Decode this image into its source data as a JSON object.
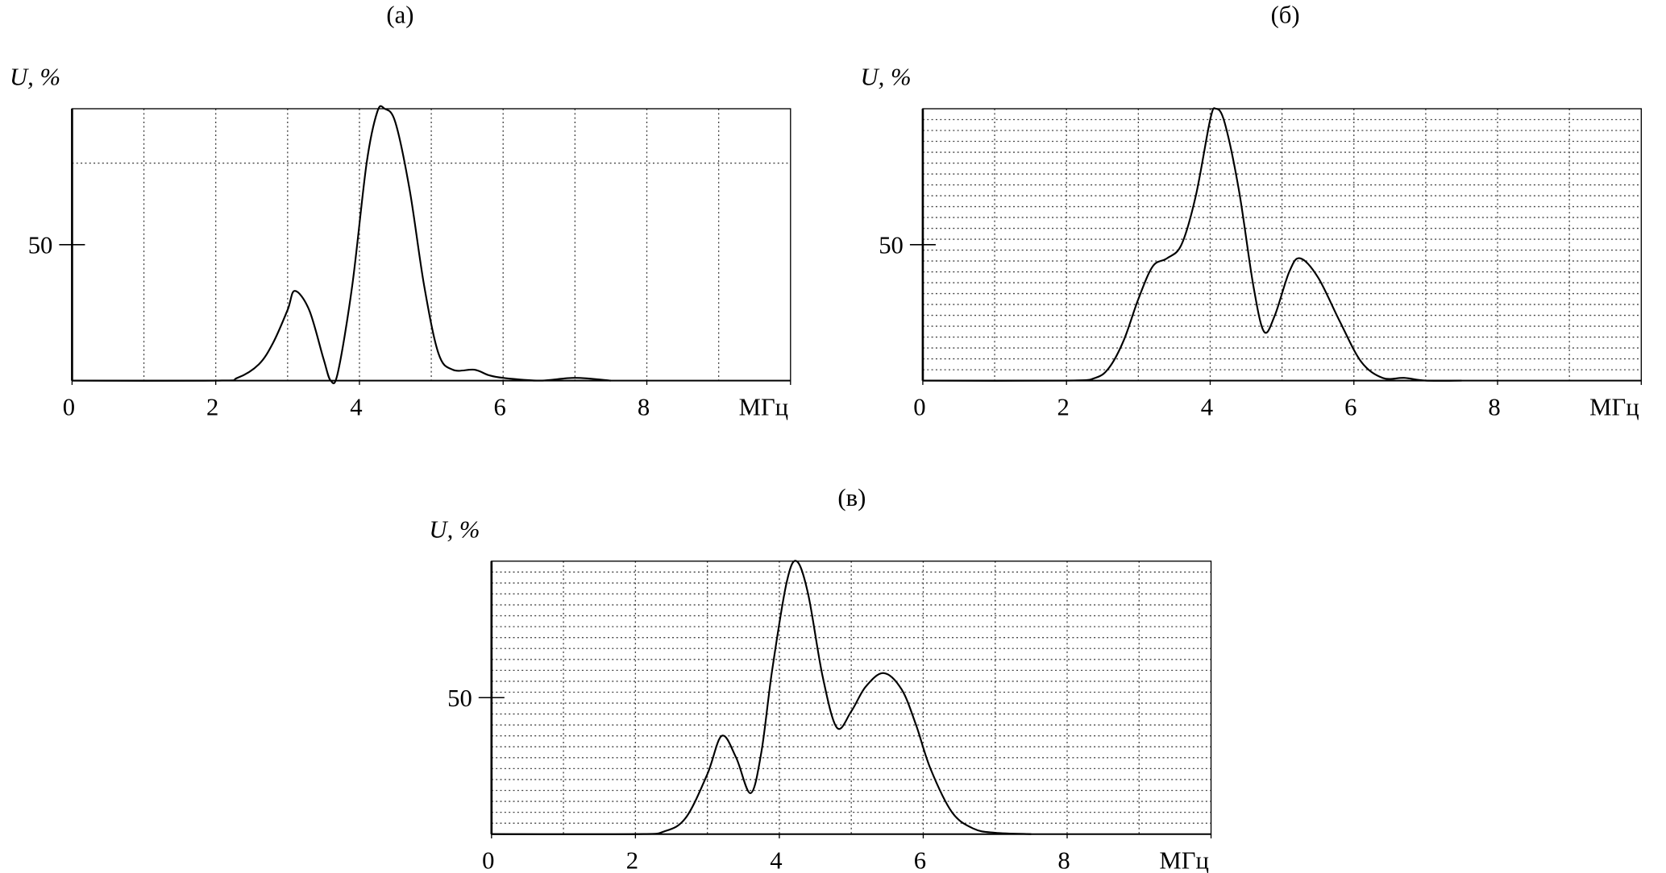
{
  "chart_data": [
    {
      "type": "line",
      "title": "(а)",
      "ylabel": "U, %",
      "color": "#000000",
      "x": [
        0,
        2.0,
        2.3,
        2.6,
        2.8,
        3.0,
        3.1,
        3.3,
        3.5,
        3.6,
        3.7,
        3.9,
        4.1,
        4.25,
        4.35,
        4.5,
        4.7,
        4.9,
        5.1,
        5.3,
        5.6,
        5.8,
        6.0,
        6.5,
        7.0,
        7.5
      ],
      "values": [
        0,
        0,
        1,
        6,
        14,
        26,
        33,
        26,
        8,
        0,
        3,
        35,
        80,
        99,
        100,
        95,
        70,
        35,
        10,
        4,
        4,
        2,
        1,
        0,
        1,
        0
      ],
      "xlim": [
        0,
        10
      ],
      "ylim": [
        0,
        100
      ],
      "xticks": [
        0,
        2,
        4,
        6,
        8,
        {
          "value": 10,
          "label": "МГц"
        }
      ],
      "yticks": [
        50
      ],
      "xgrid_step": 1,
      "ygrid_step": 80
    },
    {
      "type": "line",
      "title": "(б)",
      "ylabel": "U, %",
      "color": "#000000",
      "x": [
        0,
        2.0,
        2.4,
        2.6,
        2.8,
        3.0,
        3.2,
        3.4,
        3.6,
        3.8,
        4.0,
        4.08,
        4.2,
        4.4,
        4.6,
        4.75,
        4.9,
        5.1,
        5.25,
        5.5,
        5.8,
        6.1,
        6.4,
        6.7,
        7.0,
        7.5
      ],
      "values": [
        0,
        0,
        1,
        5,
        15,
        30,
        42,
        45,
        50,
        68,
        96,
        100,
        95,
        70,
        35,
        18,
        24,
        40,
        45,
        38,
        22,
        7,
        1,
        1,
        0,
        0
      ],
      "xlim": [
        0,
        10
      ],
      "ylim": [
        0,
        100
      ],
      "xticks": [
        0,
        2,
        4,
        6,
        8,
        {
          "value": 10,
          "label": "МГц"
        }
      ],
      "yticks": [
        50
      ],
      "xgrid_step": 1,
      "ygrid_step": 4
    },
    {
      "type": "line",
      "title": "(в)",
      "ylabel": "U, %",
      "color": "#000000",
      "x": [
        0,
        2.0,
        2.4,
        2.7,
        3.0,
        3.2,
        3.4,
        3.6,
        3.75,
        3.9,
        4.1,
        4.24,
        4.4,
        4.6,
        4.8,
        5.0,
        5.2,
        5.45,
        5.7,
        5.9,
        6.1,
        6.4,
        6.7,
        7.0,
        7.5
      ],
      "values": [
        0,
        0,
        1,
        6,
        22,
        36,
        28,
        15,
        30,
        60,
        92,
        100,
        88,
        58,
        39,
        45,
        54,
        59,
        53,
        40,
        24,
        8,
        2,
        0.5,
        0
      ],
      "xlim": [
        0,
        10
      ],
      "ylim": [
        0,
        100
      ],
      "xticks": [
        0,
        2,
        4,
        6,
        8,
        {
          "value": 10,
          "label": "МГц"
        }
      ],
      "yticks": [
        50
      ],
      "xgrid_step": 1,
      "ygrid_step": 4
    }
  ]
}
